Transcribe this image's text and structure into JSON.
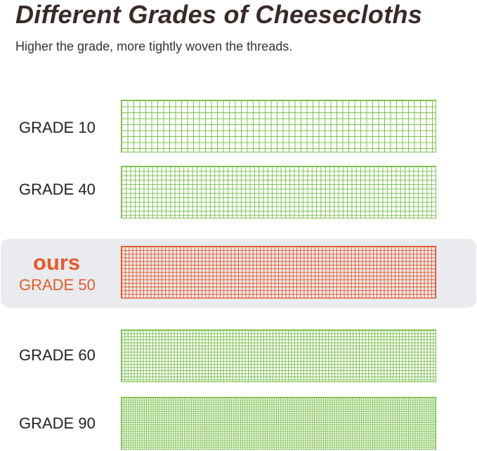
{
  "header": {
    "title": "Different Grades of Cheesecloths",
    "subtitle": "Higher the grade, more tightly woven the threads."
  },
  "colors": {
    "green": "#7cc04e",
    "orange": "#e8592a",
    "highlight": "#e9ebee",
    "title": "#3a2a28"
  },
  "grades": [
    {
      "label": "GRADE 10",
      "color": "#7cc04e",
      "highlighted": false
    },
    {
      "label": "GRADE 40",
      "color": "#7cc04e",
      "highlighted": false
    },
    {
      "badge": "ours",
      "label": "GRADE 50",
      "color": "#e8592a",
      "highlighted": true
    },
    {
      "label": "GRADE 60",
      "color": "#7cc04e",
      "highlighted": false
    },
    {
      "label": "GRADE 90",
      "color": "#7cc04e",
      "highlighted": false
    }
  ]
}
